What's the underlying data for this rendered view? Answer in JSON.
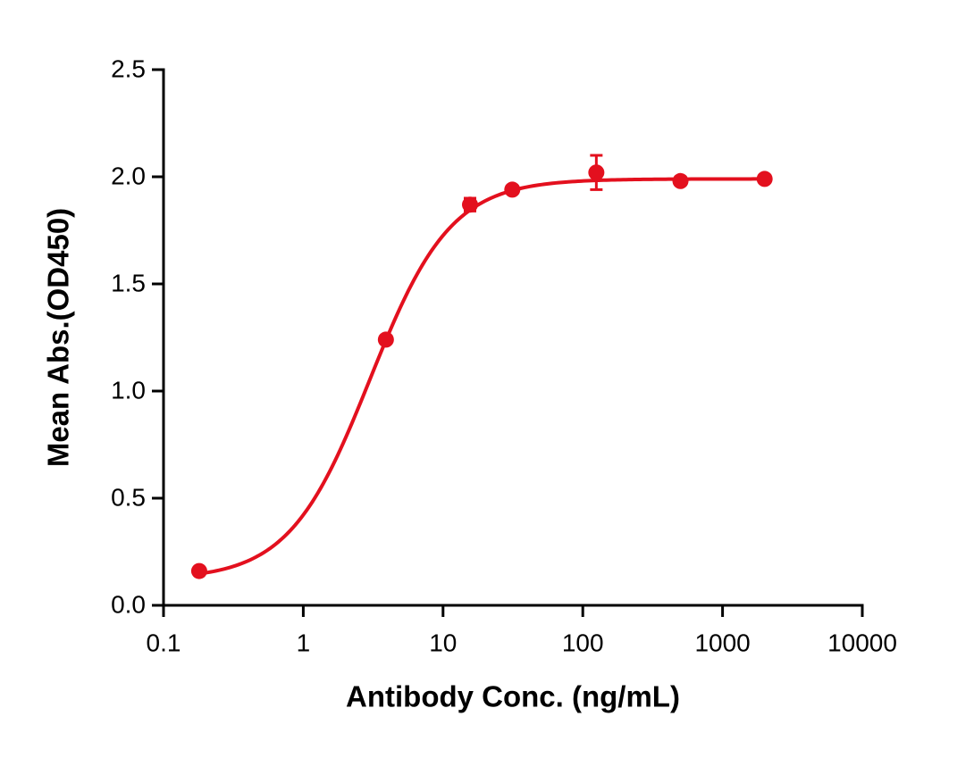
{
  "chart_data": {
    "type": "scatter",
    "x_label": "Antibody Conc. (ng/mL)",
    "y_label": "Mean Abs.(OD450)",
    "x_log": true,
    "xlim": [
      0.1,
      10000
    ],
    "xticks": [
      0.1,
      1,
      10,
      100,
      1000,
      10000
    ],
    "ylim": [
      0,
      2.5
    ],
    "yticks": [
      {
        "value": 0,
        "label": "0.0"
      },
      0.5,
      {
        "value": 1,
        "label": "1.0"
      },
      1.5,
      {
        "value": 2,
        "label": "2.0"
      },
      2.5
    ],
    "x": [
      0.18,
      3.9,
      15.6,
      31.3,
      125,
      500,
      2000
    ],
    "series": [
      {
        "color": "#e3101e",
        "values": [
          0.16,
          1.24,
          1.87,
          1.94,
          2.02,
          1.98,
          1.99
        ],
        "errors": [
          0,
          0,
          0.03,
          0.01,
          0.08,
          0,
          0
        ]
      }
    ],
    "fit": {
      "bottom": 0.12,
      "top": 1.99,
      "ec50": 3.0,
      "hill": 1.5
    }
  }
}
